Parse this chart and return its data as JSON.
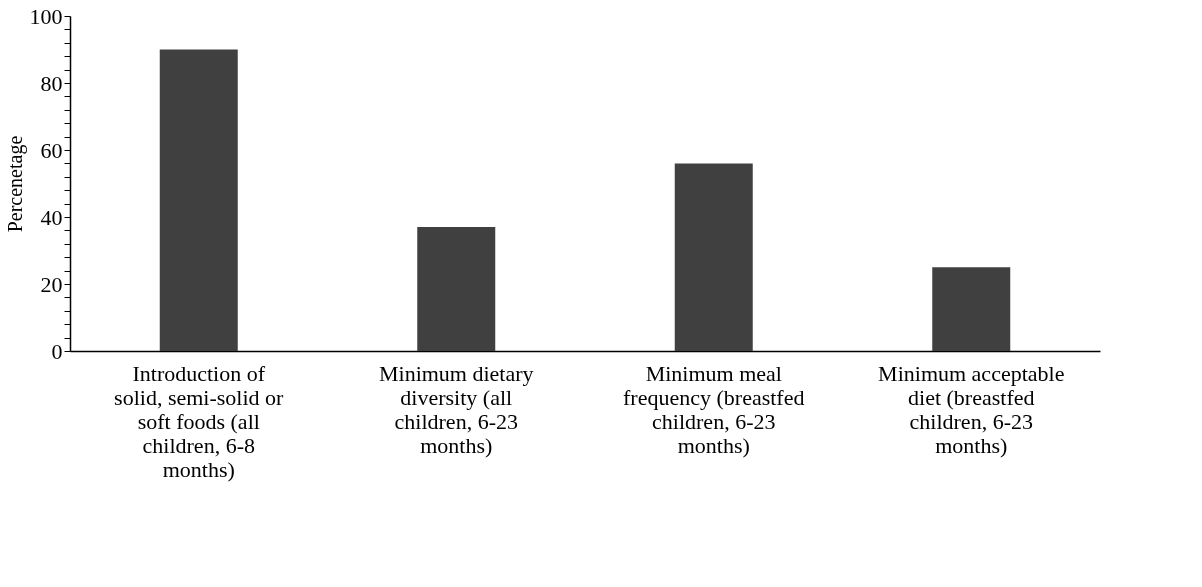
{
  "chart_data": {
    "type": "bar",
    "ylabel": "Percenetage",
    "categories": [
      "Introduction of solid, semi-solid or soft foods (all children, 6-8 months)",
      "Minimum dietary diversity (all children, 6-23 months)",
      "Minimum meal frequency (breastfed children, 6-23 months)",
      "Minimum acceptable diet (breastfed children, 6-23 months)"
    ],
    "values": [
      90,
      37,
      56,
      25
    ],
    "color": "#404040",
    "ylim": [
      0,
      100
    ],
    "yticks": [
      0,
      {
        "value": 4,
        "label": null
      },
      {
        "value": 8,
        "label": null
      },
      {
        "value": 12,
        "label": null
      },
      {
        "value": 16,
        "label": null
      },
      20,
      {
        "value": 24,
        "label": null
      },
      {
        "value": 28,
        "label": null
      },
      {
        "value": 32,
        "label": null
      },
      {
        "value": 36,
        "label": null
      },
      40,
      {
        "value": 44,
        "label": null
      },
      {
        "value": 48,
        "label": null
      },
      {
        "value": 52,
        "label": null
      },
      {
        "value": 56,
        "label": null
      },
      60,
      {
        "value": 64,
        "label": null
      },
      {
        "value": 68,
        "label": null
      },
      {
        "value": 72,
        "label": null
      },
      {
        "value": 76,
        "label": null
      },
      80,
      {
        "value": 84,
        "label": null
      },
      {
        "value": 88,
        "label": null
      },
      {
        "value": 92,
        "label": null
      },
      {
        "value": 96,
        "label": null
      },
      100
    ],
    "grid": false
  }
}
